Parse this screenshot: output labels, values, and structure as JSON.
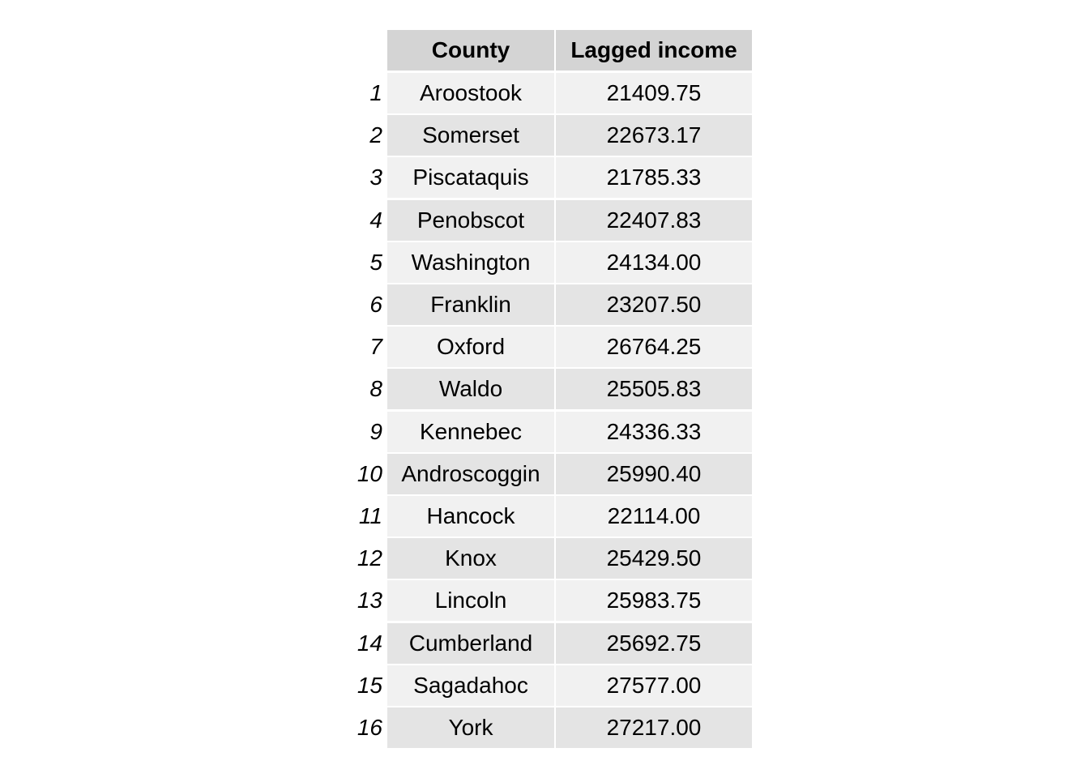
{
  "chart_data": {
    "type": "table",
    "columns": [
      "County",
      "Lagged income"
    ],
    "row_labels": [
      "1",
      "2",
      "3",
      "4",
      "5",
      "6",
      "7",
      "8",
      "9",
      "10",
      "11",
      "12",
      "13",
      "14",
      "15",
      "16"
    ],
    "rows": [
      [
        "Aroostook",
        "21409.75"
      ],
      [
        "Somerset",
        "22673.17"
      ],
      [
        "Piscataquis",
        "21785.33"
      ],
      [
        "Penobscot",
        "22407.83"
      ],
      [
        "Washington",
        "24134.00"
      ],
      [
        "Franklin",
        "23207.50"
      ],
      [
        "Oxford",
        "26764.25"
      ],
      [
        "Waldo",
        "25505.83"
      ],
      [
        "Kennebec",
        "24336.33"
      ],
      [
        "Androscoggin",
        "25990.40"
      ],
      [
        "Hancock",
        "22114.00"
      ],
      [
        "Knox",
        "25429.50"
      ],
      [
        "Lincoln",
        "25983.75"
      ],
      [
        "Cumberland",
        "25692.75"
      ],
      [
        "Sagadahoc",
        "27577.00"
      ],
      [
        "York",
        "27217.00"
      ]
    ]
  },
  "colors": {
    "header_bg": "#d4d4d4",
    "row_odd_bg": "#f1f1f1",
    "row_even_bg": "#e4e4e4"
  }
}
